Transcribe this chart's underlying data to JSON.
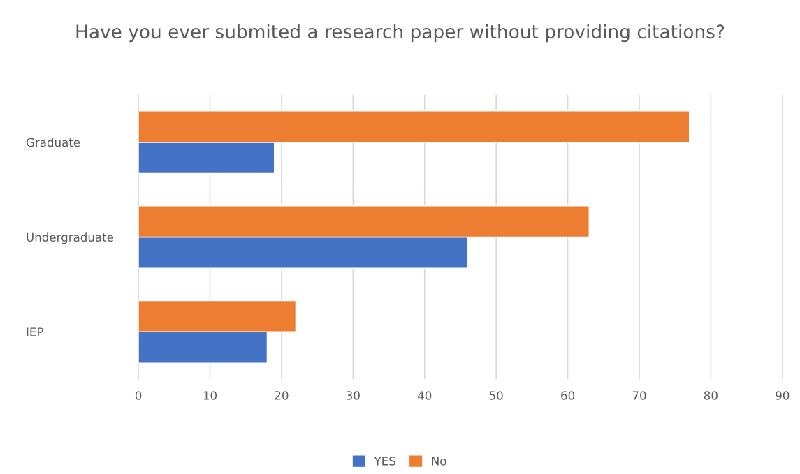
{
  "chart_data": {
    "type": "bar",
    "orientation": "horizontal",
    "title": "Have you ever submited a research paper without providing citations?",
    "categories": [
      "Graduate",
      "Undergraduate",
      "IEP"
    ],
    "series": [
      {
        "name": "YES",
        "color": "#4472c4",
        "values": [
          19,
          46,
          18
        ]
      },
      {
        "name": "No",
        "color": "#ed7d31",
        "values": [
          77,
          63,
          22
        ]
      }
    ],
    "xlim": [
      0,
      90
    ],
    "xticks": [
      0,
      10,
      20,
      30,
      40,
      50,
      60,
      70,
      80,
      90
    ],
    "grid": "x",
    "legend": "bottom"
  }
}
